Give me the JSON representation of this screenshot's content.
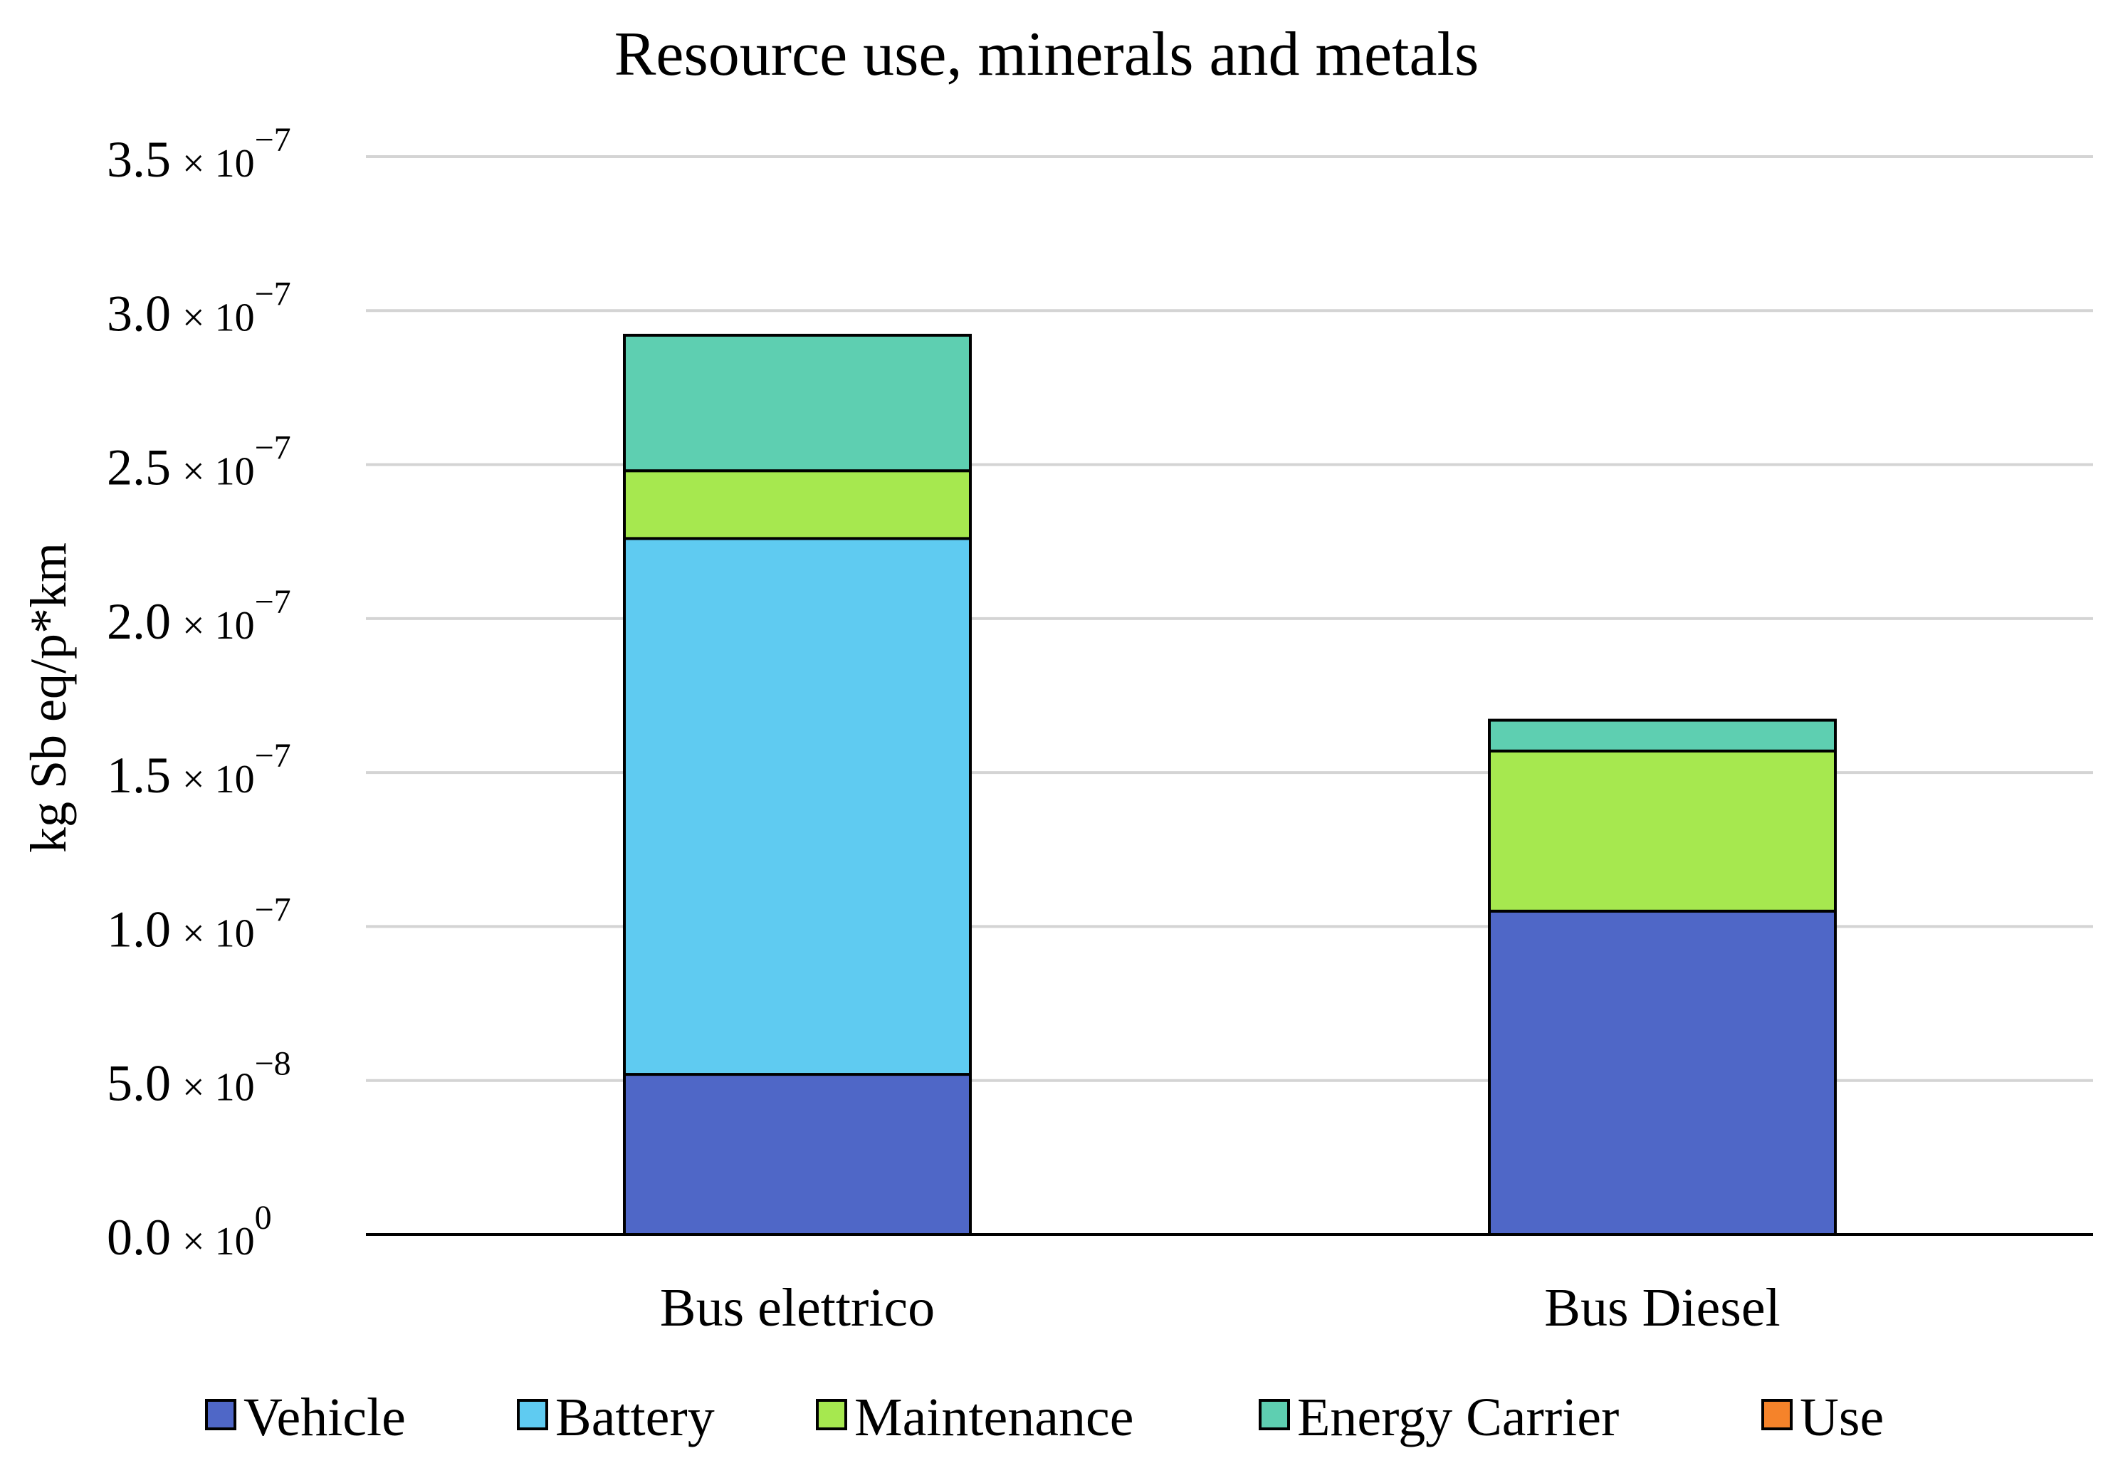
{
  "chart_data": {
    "type": "bar",
    "stacked": true,
    "title": "Resource use, minerals and metals",
    "xlabel": "",
    "ylabel": "kg Sb eq/p*km",
    "ylim": [
      0,
      3.5e-07
    ],
    "grid": true,
    "legend_position": "bottom",
    "categories": [
      "Bus elettrico",
      "Bus Diesel"
    ],
    "yticks": [
      {
        "value": 0,
        "mantissa": "0.0",
        "exponent": "0"
      },
      {
        "value": 5e-08,
        "mantissa": "5.0",
        "exponent": "−8"
      },
      {
        "value": 1e-07,
        "mantissa": "1.0",
        "exponent": "−7"
      },
      {
        "value": 1.5e-07,
        "mantissa": "1.5",
        "exponent": "−7"
      },
      {
        "value": 2e-07,
        "mantissa": "2.0",
        "exponent": "−7"
      },
      {
        "value": 2.5e-07,
        "mantissa": "2.5",
        "exponent": "−7"
      },
      {
        "value": 3e-07,
        "mantissa": "3.0",
        "exponent": "−7"
      },
      {
        "value": 3.5e-07,
        "mantissa": "3.5",
        "exponent": "−7"
      }
    ],
    "tick_multiplier": "× 10",
    "series": [
      {
        "name": "Vehicle",
        "color": "#4f67c7",
        "values": [
          5.2e-08,
          1.05e-07
        ]
      },
      {
        "name": "Battery",
        "color": "#5fcbf1",
        "values": [
          1.74e-07,
          0
        ]
      },
      {
        "name": "Maintenance",
        "color": "#a6e84f",
        "values": [
          2.2e-08,
          5.2e-08
        ]
      },
      {
        "name": "Energy Carrier",
        "color": "#5ecfb1",
        "values": [
          4.4e-08,
          1e-08
        ]
      },
      {
        "name": "Use",
        "color": "#f5832a",
        "values": [
          0,
          0
        ]
      }
    ]
  }
}
